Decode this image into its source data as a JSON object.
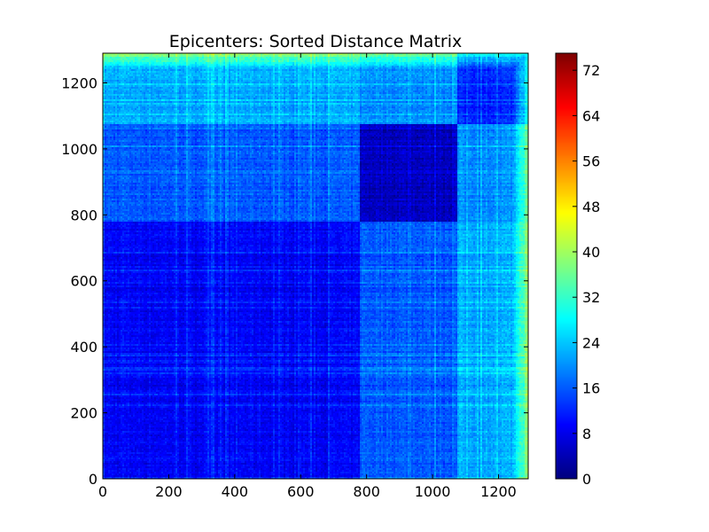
{
  "chart_data": {
    "type": "heatmap",
    "title": "Epicenters: Sorted Distance Matrix",
    "xlabel": "",
    "ylabel": "",
    "n": 1290,
    "xlim": [
      0,
      1290
    ],
    "ylim": [
      0,
      1290
    ],
    "x_ticks": [
      0,
      200,
      400,
      600,
      800,
      1000,
      1200
    ],
    "y_ticks": [
      0,
      200,
      400,
      600,
      800,
      1000,
      1200
    ],
    "colormap": "jet",
    "colorbar": {
      "vmin": 0,
      "vmax": 75,
      "ticks": [
        0,
        8,
        16,
        24,
        32,
        40,
        48,
        56,
        64,
        72
      ]
    },
    "grid": false,
    "clusters": [
      {
        "start": 0,
        "end": 780,
        "within": 9
      },
      {
        "start": 780,
        "end": 1075,
        "within": 5
      },
      {
        "start": 1075,
        "end": 1290,
        "within": 12
      }
    ],
    "cross_distances": [
      {
        "a": 0,
        "b": 1,
        "value": 16
      },
      {
        "a": 0,
        "b": 2,
        "value": 22
      },
      {
        "a": 1,
        "b": 2,
        "value": 20
      }
    ]
  }
}
